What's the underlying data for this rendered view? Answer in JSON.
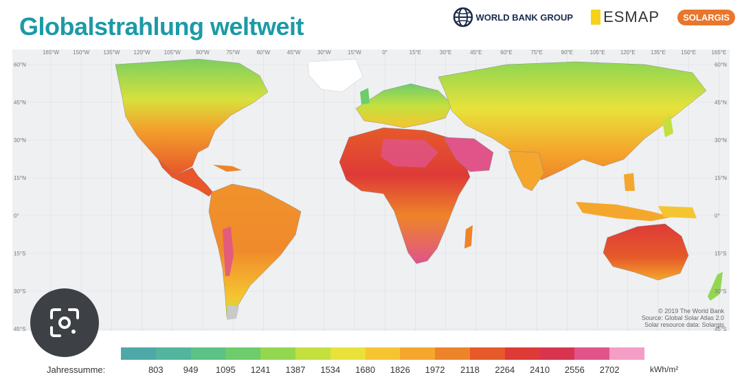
{
  "title": "Globalstrahlung weltweit",
  "logos": {
    "world_bank": "WORLD BANK GROUP",
    "esmap": "ESMAP",
    "solargis": "SOLARGIS"
  },
  "map": {
    "longitudes": [
      "165°W",
      "150°W",
      "135°W",
      "120°W",
      "105°W",
      "90°W",
      "75°W",
      "60°W",
      "45°W",
      "30°W",
      "15°W",
      "0°",
      "15°E",
      "30°E",
      "45°E",
      "60°E",
      "75°E",
      "90°E",
      "105°E",
      "120°E",
      "135°E",
      "150°E",
      "165°E"
    ],
    "latitudes": [
      "60°N",
      "45°N",
      "30°N",
      "15°N",
      "0°",
      "15°S",
      "30°S",
      "45°S"
    ],
    "credit": [
      "© 2019 The World Bank",
      "Source: Global Solar Atlas 2.0",
      "Solar resource data: Solargis"
    ]
  },
  "legend": {
    "label": "Jahressumme:",
    "values": [
      "803",
      "949",
      "1095",
      "1241",
      "1387",
      "1534",
      "1680",
      "1826",
      "1972",
      "2118",
      "2264",
      "2410",
      "2556",
      "2702"
    ],
    "unit": "kWh/m²",
    "colors": [
      "#4fa8a8",
      "#52b59d",
      "#5cc285",
      "#6dcc6b",
      "#93d64f",
      "#c4e03e",
      "#e8e23a",
      "#f5c531",
      "#f4a72c",
      "#ee8429",
      "#e65a2a",
      "#de3a37",
      "#d8344f",
      "#e0548a",
      "#f49ec6"
    ]
  },
  "lens_icon": "google-lens-icon"
}
